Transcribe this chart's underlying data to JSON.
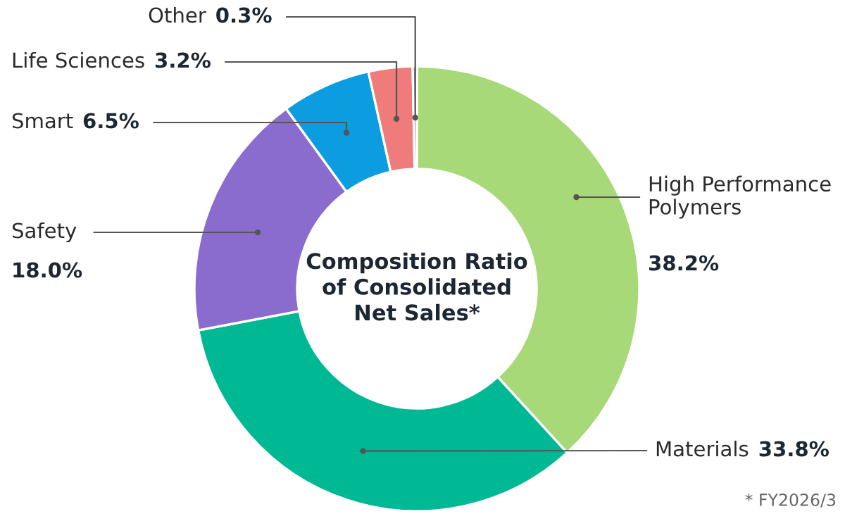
{
  "chart_data": {
    "type": "donut",
    "title": "Composition Ratio\nof Consolidated\nNet Sales*",
    "categories": [
      "High Performance Polymers",
      "Materials",
      "Safety",
      "Smart",
      "Life Sciences",
      "Other"
    ],
    "values": [
      38.2,
      33.8,
      18.0,
      6.5,
      3.2,
      0.3
    ],
    "value_labels": [
      "38.2%",
      "33.8%",
      "18.0%",
      "6.5%",
      "3.2%",
      "0.3%"
    ],
    "colors": [
      "#a8d978",
      "#00b894",
      "#8a6ccf",
      "#0b9de0",
      "#ef7b7b",
      "#8c98a4"
    ],
    "annotations": [
      "* FY2026/3"
    ]
  }
}
